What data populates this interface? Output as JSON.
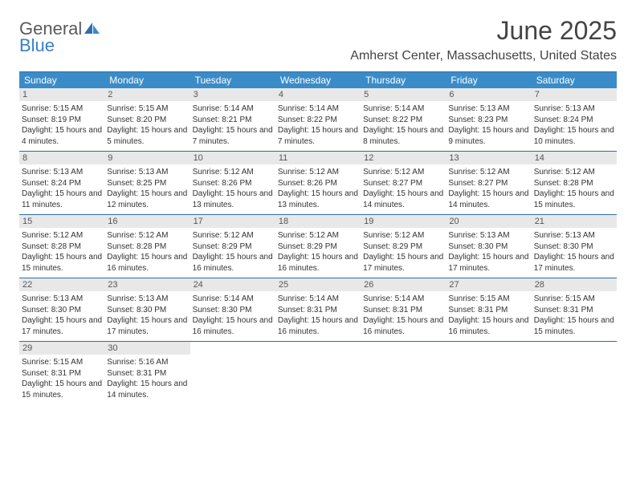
{
  "logo": {
    "part1": "General",
    "part2": "Blue"
  },
  "title": "June 2025",
  "location": "Amherst Center, Massachusetts, United States",
  "colors": {
    "header_bar": "#3a8cc8",
    "header_border": "#2d6fa8",
    "daynum_bg": "#e8e8e8",
    "logo_gray": "#5a5a5a",
    "logo_blue": "#3a7fc4"
  },
  "days_of_week": [
    "Sunday",
    "Monday",
    "Tuesday",
    "Wednesday",
    "Thursday",
    "Friday",
    "Saturday"
  ],
  "weeks": [
    [
      {
        "n": "1",
        "sunrise": "5:15 AM",
        "sunset": "8:19 PM",
        "daylight": "15 hours and 4 minutes."
      },
      {
        "n": "2",
        "sunrise": "5:15 AM",
        "sunset": "8:20 PM",
        "daylight": "15 hours and 5 minutes."
      },
      {
        "n": "3",
        "sunrise": "5:14 AM",
        "sunset": "8:21 PM",
        "daylight": "15 hours and 7 minutes."
      },
      {
        "n": "4",
        "sunrise": "5:14 AM",
        "sunset": "8:22 PM",
        "daylight": "15 hours and 7 minutes."
      },
      {
        "n": "5",
        "sunrise": "5:14 AM",
        "sunset": "8:22 PM",
        "daylight": "15 hours and 8 minutes."
      },
      {
        "n": "6",
        "sunrise": "5:13 AM",
        "sunset": "8:23 PM",
        "daylight": "15 hours and 9 minutes."
      },
      {
        "n": "7",
        "sunrise": "5:13 AM",
        "sunset": "8:24 PM",
        "daylight": "15 hours and 10 minutes."
      }
    ],
    [
      {
        "n": "8",
        "sunrise": "5:13 AM",
        "sunset": "8:24 PM",
        "daylight": "15 hours and 11 minutes."
      },
      {
        "n": "9",
        "sunrise": "5:13 AM",
        "sunset": "8:25 PM",
        "daylight": "15 hours and 12 minutes."
      },
      {
        "n": "10",
        "sunrise": "5:12 AM",
        "sunset": "8:26 PM",
        "daylight": "15 hours and 13 minutes."
      },
      {
        "n": "11",
        "sunrise": "5:12 AM",
        "sunset": "8:26 PM",
        "daylight": "15 hours and 13 minutes."
      },
      {
        "n": "12",
        "sunrise": "5:12 AM",
        "sunset": "8:27 PM",
        "daylight": "15 hours and 14 minutes."
      },
      {
        "n": "13",
        "sunrise": "5:12 AM",
        "sunset": "8:27 PM",
        "daylight": "15 hours and 14 minutes."
      },
      {
        "n": "14",
        "sunrise": "5:12 AM",
        "sunset": "8:28 PM",
        "daylight": "15 hours and 15 minutes."
      }
    ],
    [
      {
        "n": "15",
        "sunrise": "5:12 AM",
        "sunset": "8:28 PM",
        "daylight": "15 hours and 15 minutes."
      },
      {
        "n": "16",
        "sunrise": "5:12 AM",
        "sunset": "8:28 PM",
        "daylight": "15 hours and 16 minutes."
      },
      {
        "n": "17",
        "sunrise": "5:12 AM",
        "sunset": "8:29 PM",
        "daylight": "15 hours and 16 minutes."
      },
      {
        "n": "18",
        "sunrise": "5:12 AM",
        "sunset": "8:29 PM",
        "daylight": "15 hours and 16 minutes."
      },
      {
        "n": "19",
        "sunrise": "5:12 AM",
        "sunset": "8:29 PM",
        "daylight": "15 hours and 17 minutes."
      },
      {
        "n": "20",
        "sunrise": "5:13 AM",
        "sunset": "8:30 PM",
        "daylight": "15 hours and 17 minutes."
      },
      {
        "n": "21",
        "sunrise": "5:13 AM",
        "sunset": "8:30 PM",
        "daylight": "15 hours and 17 minutes."
      }
    ],
    [
      {
        "n": "22",
        "sunrise": "5:13 AM",
        "sunset": "8:30 PM",
        "daylight": "15 hours and 17 minutes."
      },
      {
        "n": "23",
        "sunrise": "5:13 AM",
        "sunset": "8:30 PM",
        "daylight": "15 hours and 17 minutes."
      },
      {
        "n": "24",
        "sunrise": "5:14 AM",
        "sunset": "8:30 PM",
        "daylight": "15 hours and 16 minutes."
      },
      {
        "n": "25",
        "sunrise": "5:14 AM",
        "sunset": "8:31 PM",
        "daylight": "15 hours and 16 minutes."
      },
      {
        "n": "26",
        "sunrise": "5:14 AM",
        "sunset": "8:31 PM",
        "daylight": "15 hours and 16 minutes."
      },
      {
        "n": "27",
        "sunrise": "5:15 AM",
        "sunset": "8:31 PM",
        "daylight": "15 hours and 16 minutes."
      },
      {
        "n": "28",
        "sunrise": "5:15 AM",
        "sunset": "8:31 PM",
        "daylight": "15 hours and 15 minutes."
      }
    ],
    [
      {
        "n": "29",
        "sunrise": "5:15 AM",
        "sunset": "8:31 PM",
        "daylight": "15 hours and 15 minutes."
      },
      {
        "n": "30",
        "sunrise": "5:16 AM",
        "sunset": "8:31 PM",
        "daylight": "15 hours and 14 minutes."
      },
      null,
      null,
      null,
      null,
      null
    ]
  ],
  "labels": {
    "sunrise_prefix": "Sunrise: ",
    "sunset_prefix": "Sunset: ",
    "daylight_prefix": "Daylight: "
  }
}
